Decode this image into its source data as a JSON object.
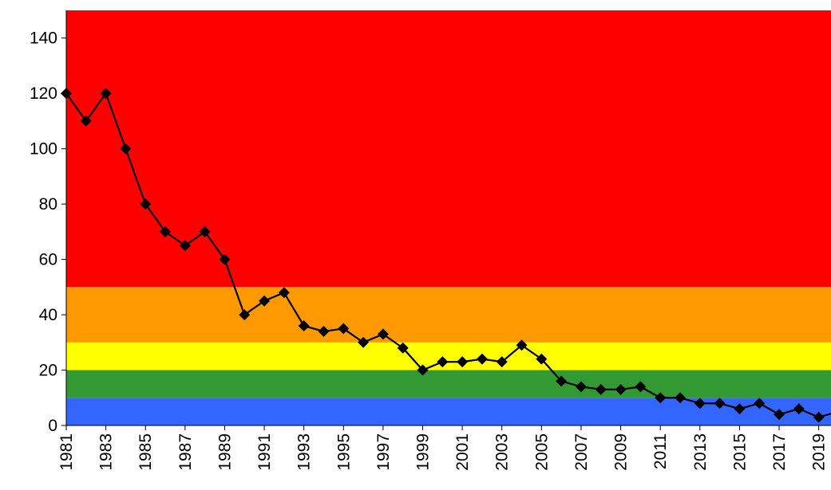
{
  "chart_data": {
    "type": "line",
    "title": "",
    "xlabel": "",
    "ylabel": "",
    "xlim": [
      1981,
      2020
    ],
    "ylim": [
      0,
      150
    ],
    "y_ticks": [
      0,
      20,
      40,
      60,
      80,
      100,
      120,
      140
    ],
    "y_tick_labels": [
      "0",
      "20",
      "40",
      "60",
      "80",
      "100",
      "120",
      "140"
    ],
    "x_ticks": [
      1981,
      1983,
      1985,
      1987,
      1989,
      1991,
      1993,
      1995,
      1997,
      1999,
      2001,
      2003,
      2005,
      2007,
      2009,
      2011,
      2013,
      2015,
      2017,
      2019
    ],
    "x_tick_labels": [
      "1981",
      "1983",
      "1985",
      "1987",
      "1989",
      "1991",
      "1993",
      "1995",
      "1997",
      "1999",
      "2001",
      "2003",
      "2005",
      "2007",
      "2009",
      "2011",
      "2013",
      "2015",
      "2017",
      "2019"
    ],
    "x_tick_label_rotation": "vertical",
    "grid": false,
    "legend": "none",
    "background_bands": [
      {
        "from": 0,
        "to": 10,
        "color": "#3366ff"
      },
      {
        "from": 10,
        "to": 20,
        "color": "#339933"
      },
      {
        "from": 20,
        "to": 30,
        "color": "#ffff00"
      },
      {
        "from": 30,
        "to": 50,
        "color": "#ff9900"
      },
      {
        "from": 50,
        "to": 150,
        "color": "#ff0000"
      }
    ],
    "series": [
      {
        "color": "#000000",
        "marker": "diamond",
        "x": [
          1981,
          1982,
          1983,
          1984,
          1985,
          1986,
          1987,
          1988,
          1989,
          1990,
          1991,
          1992,
          1993,
          1994,
          1995,
          1996,
          1997,
          1998,
          1999,
          2000,
          2001,
          2002,
          2003,
          2004,
          2005,
          2006,
          2007,
          2008,
          2009,
          2010,
          2011,
          2012,
          2013,
          2014,
          2015,
          2016,
          2017,
          2018,
          2019,
          2020
        ],
        "y": [
          120,
          110,
          120,
          100,
          80,
          70,
          65,
          70,
          60,
          40,
          45,
          48,
          36,
          34,
          35,
          30,
          33,
          28,
          20,
          23,
          23,
          24,
          23,
          29,
          24,
          16,
          14,
          13,
          13,
          14,
          10,
          10,
          8,
          8,
          6,
          8,
          4,
          6,
          3,
          5
        ]
      }
    ]
  }
}
